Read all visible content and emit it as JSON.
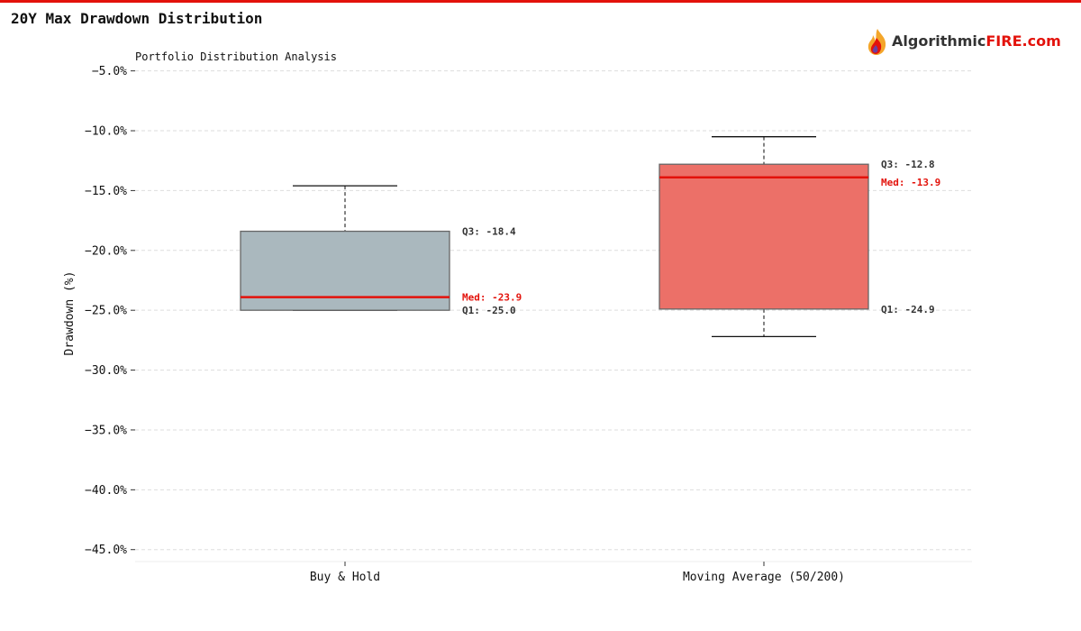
{
  "header": {
    "title": "20Y Max Drawdown Distribution",
    "logo_text_main": "Algorithmic",
    "logo_text_accent": "FIRE.com"
  },
  "colors": {
    "accent": "#e3120b",
    "buy_hold_box": "#aab8be",
    "moving_average_box": "#ec7068",
    "median_line": "#e3120b",
    "grid": "#dddddd"
  },
  "chart_data": {
    "type": "box",
    "subtitle": "Portfolio Distribution Analysis",
    "ylabel": "Drawdown (%)",
    "xlabel": "",
    "ylim": [
      -46,
      -4.5
    ],
    "yticks": [
      -5,
      -10,
      -15,
      -20,
      -25,
      -30,
      -35,
      -40,
      -45
    ],
    "ytick_labels": [
      "−5.0%",
      "−10.0%",
      "−15.0%",
      "−20.0%",
      "−25.0%",
      "−30.0%",
      "−35.0%",
      "−40.0%",
      "−45.0%"
    ],
    "grid": true,
    "categories": [
      "Buy & Hold",
      "Moving Average (50/200)"
    ],
    "boxes": [
      {
        "category": "Buy & Hold",
        "whisker_high": -14.6,
        "q3": -18.4,
        "median": -23.9,
        "q1": -25.0,
        "whisker_low": -25.0,
        "label_q3": "Q3: -18.4",
        "label_median": "Med: -23.9",
        "label_q1": "Q1: -25.0"
      },
      {
        "category": "Moving Average (50/200)",
        "whisker_high": -10.5,
        "q3": -12.8,
        "median": -13.9,
        "q1": -24.9,
        "whisker_low": -27.2,
        "label_q3": "Q3: -12.8",
        "label_median": "Med: -13.9",
        "label_q1": "Q1: -24.9"
      }
    ]
  }
}
